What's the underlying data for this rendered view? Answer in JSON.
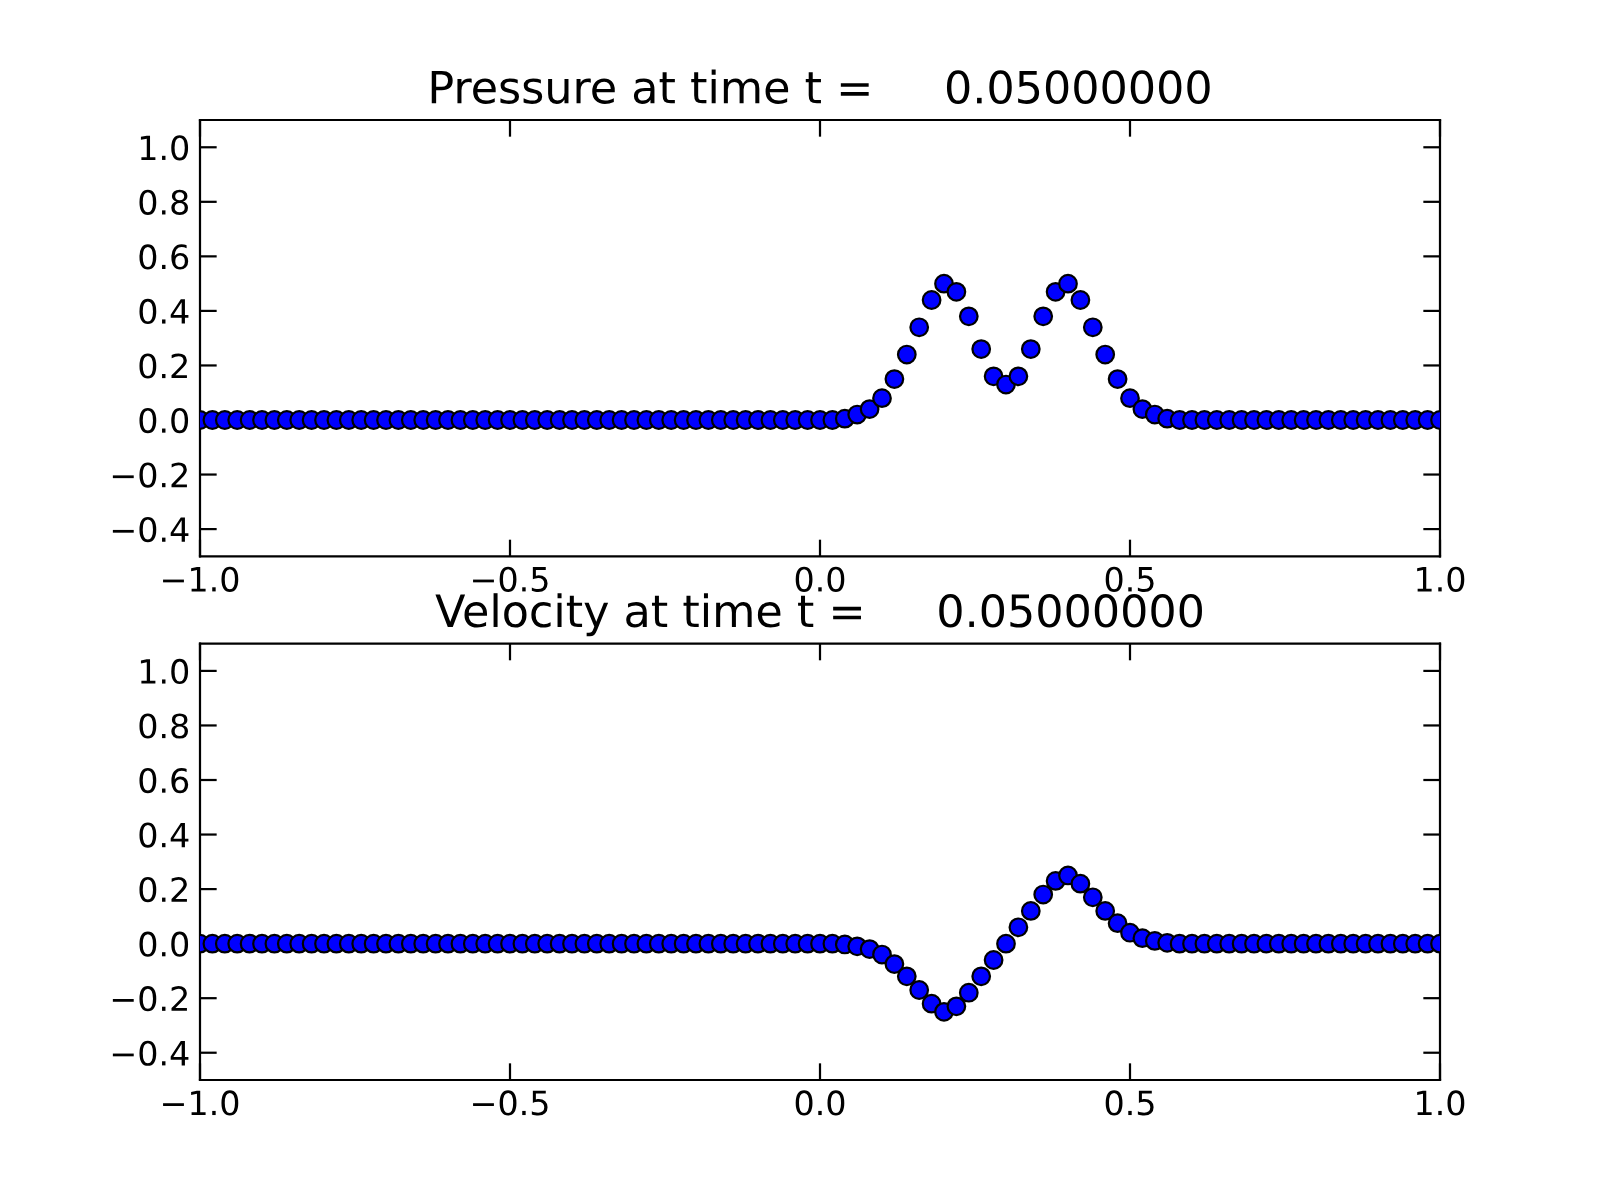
{
  "chart_data": [
    {
      "type": "scatter",
      "title": "Pressure at time t =     0.05000000",
      "marker": "circle",
      "grid": false,
      "xlim": [
        -1.0,
        1.0
      ],
      "ylim": [
        -0.5,
        1.1
      ],
      "xticks": [
        {
          "value": -1.0,
          "label": "−1.0"
        },
        {
          "value": -0.5,
          "label": "−0.5"
        },
        {
          "value": 0.0,
          "label": "0.0"
        },
        {
          "value": 0.5,
          "label": "0.5"
        },
        {
          "value": 1.0,
          "label": "1.0"
        }
      ],
      "yticks": [
        {
          "value": -0.4,
          "label": "−0.4"
        },
        {
          "value": -0.2,
          "label": "−0.2"
        },
        {
          "value": 0.0,
          "label": "0.0"
        },
        {
          "value": 0.2,
          "label": "0.2"
        },
        {
          "value": 0.4,
          "label": "0.4"
        },
        {
          "value": 0.6,
          "label": "0.6"
        },
        {
          "value": 0.8,
          "label": "0.8"
        },
        {
          "value": 1.0,
          "label": "1.0"
        }
      ],
      "series": [
        {
          "color": "#0000ff",
          "x": [
            -1,
            -0.98,
            -0.96,
            -0.94,
            -0.92,
            -0.9,
            -0.88,
            -0.86,
            -0.84,
            -0.82,
            -0.8,
            -0.78,
            -0.76,
            -0.74,
            -0.72,
            -0.7,
            -0.68,
            -0.66,
            -0.64,
            -0.62,
            -0.6,
            -0.58,
            -0.56,
            -0.54,
            -0.52,
            -0.5,
            -0.48,
            -0.46,
            -0.44,
            -0.42,
            -0.4,
            -0.38,
            -0.36,
            -0.34,
            -0.32,
            -0.3,
            -0.28,
            -0.26,
            -0.24,
            -0.22,
            -0.2,
            -0.18,
            -0.16,
            -0.14,
            -0.12,
            -0.1,
            -0.08,
            -0.06,
            -0.04,
            -0.02,
            0,
            0.02,
            0.04,
            0.06,
            0.08,
            0.1,
            0.12,
            0.14,
            0.16,
            0.18,
            0.2,
            0.22,
            0.24,
            0.26,
            0.28,
            0.3,
            0.32,
            0.34,
            0.36,
            0.38,
            0.4,
            0.42,
            0.44,
            0.46,
            0.48,
            0.5,
            0.52,
            0.54,
            0.56,
            0.58,
            0.6,
            0.62,
            0.64,
            0.66,
            0.68,
            0.7,
            0.72,
            0.74,
            0.76,
            0.78,
            0.8,
            0.82,
            0.84,
            0.86,
            0.88,
            0.9,
            0.92,
            0.94,
            0.96,
            0.98,
            1
          ],
          "values": [
            0,
            0,
            0,
            0,
            0,
            0,
            0,
            0,
            0,
            0,
            0,
            0,
            0,
            0,
            0,
            0,
            0,
            0,
            0,
            0,
            0,
            0,
            0,
            0,
            0,
            0,
            0,
            0,
            0,
            0,
            0,
            0,
            0,
            0,
            0,
            0,
            0,
            0,
            0,
            0,
            0,
            0,
            0,
            0,
            0,
            0,
            0,
            0,
            0,
            0,
            0,
            0,
            0.005,
            0.02,
            0.04,
            0.08,
            0.15,
            0.24,
            0.34,
            0.44,
            0.5,
            0.47,
            0.38,
            0.26,
            0.16,
            0.13,
            0.16,
            0.26,
            0.38,
            0.47,
            0.5,
            0.44,
            0.34,
            0.24,
            0.15,
            0.08,
            0.04,
            0.02,
            0.005,
            0,
            0,
            0,
            0,
            0,
            0,
            0,
            0,
            0,
            0,
            0,
            0,
            0,
            0,
            0,
            0,
            0,
            0,
            0,
            0,
            0,
            0
          ]
        }
      ]
    },
    {
      "type": "scatter",
      "title": "Velocity at time t =     0.05000000",
      "marker": "circle",
      "grid": false,
      "xlim": [
        -1.0,
        1.0
      ],
      "ylim": [
        -0.5,
        1.1
      ],
      "xticks": [
        {
          "value": -1.0,
          "label": "−1.0"
        },
        {
          "value": -0.5,
          "label": "−0.5"
        },
        {
          "value": 0.0,
          "label": "0.0"
        },
        {
          "value": 0.5,
          "label": "0.5"
        },
        {
          "value": 1.0,
          "label": "1.0"
        }
      ],
      "yticks": [
        {
          "value": -0.4,
          "label": "−0.4"
        },
        {
          "value": -0.2,
          "label": "−0.2"
        },
        {
          "value": 0.0,
          "label": "0.0"
        },
        {
          "value": 0.2,
          "label": "0.2"
        },
        {
          "value": 0.4,
          "label": "0.4"
        },
        {
          "value": 0.6,
          "label": "0.6"
        },
        {
          "value": 0.8,
          "label": "0.8"
        },
        {
          "value": 1.0,
          "label": "1.0"
        }
      ],
      "series": [
        {
          "color": "#0000ff",
          "x": [
            -1,
            -0.98,
            -0.96,
            -0.94,
            -0.92,
            -0.9,
            -0.88,
            -0.86,
            -0.84,
            -0.82,
            -0.8,
            -0.78,
            -0.76,
            -0.74,
            -0.72,
            -0.7,
            -0.68,
            -0.66,
            -0.64,
            -0.62,
            -0.6,
            -0.58,
            -0.56,
            -0.54,
            -0.52,
            -0.5,
            -0.48,
            -0.46,
            -0.44,
            -0.42,
            -0.4,
            -0.38,
            -0.36,
            -0.34,
            -0.32,
            -0.3,
            -0.28,
            -0.26,
            -0.24,
            -0.22,
            -0.2,
            -0.18,
            -0.16,
            -0.14,
            -0.12,
            -0.1,
            -0.08,
            -0.06,
            -0.04,
            -0.02,
            0,
            0.02,
            0.04,
            0.06,
            0.08,
            0.1,
            0.12,
            0.14,
            0.16,
            0.18,
            0.2,
            0.22,
            0.24,
            0.26,
            0.28,
            0.3,
            0.32,
            0.34,
            0.36,
            0.38,
            0.4,
            0.42,
            0.44,
            0.46,
            0.48,
            0.5,
            0.52,
            0.54,
            0.56,
            0.58,
            0.6,
            0.62,
            0.64,
            0.66,
            0.68,
            0.7,
            0.72,
            0.74,
            0.76,
            0.78,
            0.8,
            0.82,
            0.84,
            0.86,
            0.88,
            0.9,
            0.92,
            0.94,
            0.96,
            0.98,
            1
          ],
          "values": [
            0,
            0,
            0,
            0,
            0,
            0,
            0,
            0,
            0,
            0,
            0,
            0,
            0,
            0,
            0,
            0,
            0,
            0,
            0,
            0,
            0,
            0,
            0,
            0,
            0,
            0,
            0,
            0,
            0,
            0,
            0,
            0,
            0,
            0,
            0,
            0,
            0,
            0,
            0,
            0,
            0,
            0,
            0,
            0,
            0,
            0,
            0,
            0,
            0,
            0,
            0,
            0,
            -0.003,
            -0.01,
            -0.02,
            -0.04,
            -0.075,
            -0.12,
            -0.17,
            -0.22,
            -0.25,
            -0.23,
            -0.18,
            -0.12,
            -0.06,
            0,
            0.06,
            0.12,
            0.18,
            0.23,
            0.25,
            0.22,
            0.17,
            0.12,
            0.075,
            0.04,
            0.02,
            0.01,
            0.003,
            0,
            0,
            0,
            0,
            0,
            0,
            0,
            0,
            0,
            0,
            0,
            0,
            0,
            0,
            0,
            0,
            0,
            0,
            0,
            0,
            0,
            0
          ]
        }
      ]
    }
  ]
}
